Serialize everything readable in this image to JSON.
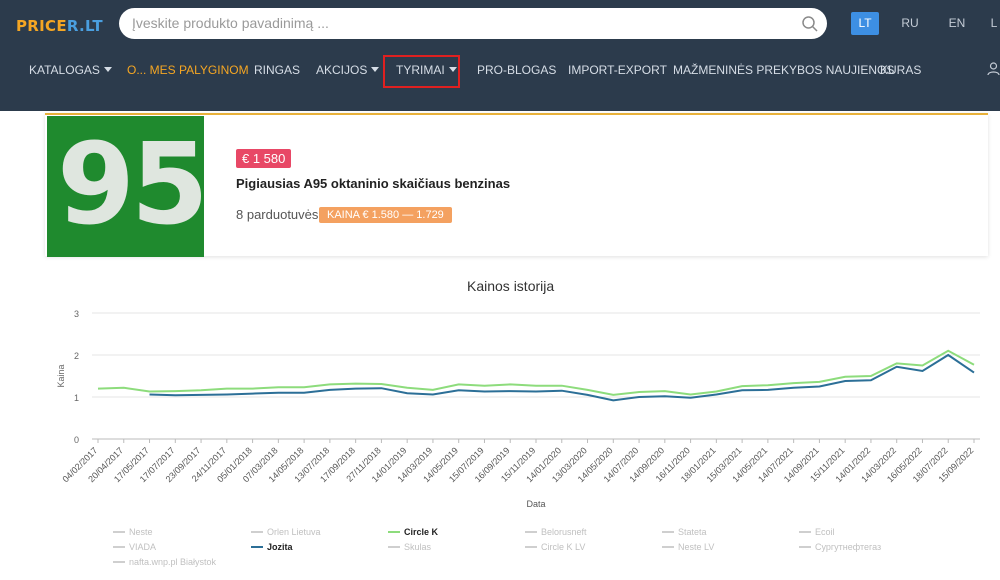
{
  "header": {
    "logo_main": "PRICE",
    "logo_suffix": "R.LT",
    "search_placeholder": "Įveskite produkto pavadinimą ...",
    "languages": [
      "LT",
      "RU",
      "EN",
      "L"
    ]
  },
  "nav": {
    "items": [
      {
        "label": "KATALOGAS",
        "caret": true
      },
      {
        "label": "O... MES PALYGINOM"
      },
      {
        "label": "RINGAS"
      },
      {
        "label": "AKCIJOS",
        "caret": true
      },
      {
        "label": "TYRIMAI",
        "caret": true
      },
      {
        "label": "PRO-BLOGAS"
      },
      {
        "label": "IMPORT-EXPORT"
      },
      {
        "label": "MAŽMENINĖS PREKYBOS NAUJIENOS"
      },
      {
        "label": "KURAS"
      }
    ],
    "highlight_color": "#e02020",
    "accent_color": "#f5a623"
  },
  "product": {
    "image_text": "95",
    "price": "€ 1 580",
    "title": "Pigiausias A95 oktaninio skaičiaus benzinas",
    "stores": "8 parduotuvės",
    "range": "KAINA € 1.580 — 1.729"
  },
  "chart_data": {
    "type": "line",
    "title": "Kainos istorija",
    "xlabel": "Data",
    "ylabel": "Kaina",
    "ylim": [
      0,
      3
    ],
    "yticks": [
      "0",
      "1",
      "2",
      "3"
    ],
    "grid": true,
    "legend_position": "bottom",
    "x": [
      "04/02/2017",
      "20/04/2017",
      "17/05/2017",
      "17/07/2017",
      "23/09/2017",
      "24/11/2017",
      "05/01/2018",
      "07/03/2018",
      "14/05/2018",
      "13/07/2018",
      "17/09/2018",
      "27/11/2018",
      "14/01/2019",
      "14/03/2019",
      "14/05/2019",
      "15/07/2019",
      "16/09/2019",
      "15/11/2019",
      "14/01/2020",
      "13/03/2020",
      "14/05/2020",
      "14/07/2020",
      "14/09/2020",
      "16/11/2020",
      "18/01/2021",
      "15/03/2021",
      "14/05/2021",
      "14/07/2021",
      "14/09/2021",
      "15/11/2021",
      "14/01/2022",
      "14/03/2022",
      "16/05/2022",
      "18/07/2022",
      "15/09/2022"
    ],
    "series": [
      {
        "name": "Circle K",
        "color": "#8ddc7c",
        "values": [
          1.2,
          1.22,
          1.13,
          1.14,
          1.16,
          1.2,
          1.2,
          1.23,
          1.23,
          1.3,
          1.32,
          1.31,
          1.22,
          1.17,
          1.3,
          1.27,
          1.3,
          1.27,
          1.27,
          1.17,
          1.05,
          1.12,
          1.14,
          1.06,
          1.13,
          1.26,
          1.28,
          1.33,
          1.36,
          1.48,
          1.5,
          1.8,
          1.75,
          2.1,
          1.77
        ]
      },
      {
        "name": "Jozita",
        "color": "#2c6f97",
        "values": [
          null,
          null,
          1.06,
          1.04,
          1.05,
          1.06,
          1.08,
          1.1,
          1.1,
          1.17,
          1.2,
          1.21,
          1.09,
          1.06,
          1.16,
          1.13,
          1.14,
          1.13,
          1.15,
          1.05,
          0.92,
          1.0,
          1.02,
          0.98,
          1.06,
          1.16,
          1.17,
          1.22,
          1.25,
          1.38,
          1.4,
          1.72,
          1.62,
          2.0,
          1.58
        ]
      }
    ],
    "legend": [
      {
        "name": "Neste",
        "active": false
      },
      {
        "name": "Orlen Lietuva",
        "active": false
      },
      {
        "name": "Circle K",
        "active": true,
        "color": "#8ddc7c"
      },
      {
        "name": "Belorusneft",
        "active": false
      },
      {
        "name": "Stateta",
        "active": false
      },
      {
        "name": "Ecoil",
        "active": false
      },
      {
        "name": "VIADA",
        "active": false
      },
      {
        "name": "Jozita",
        "active": true,
        "color": "#2c6f97"
      },
      {
        "name": "Skulas",
        "active": false
      },
      {
        "name": "Circle K LV",
        "active": false
      },
      {
        "name": "Neste LV",
        "active": false
      },
      {
        "name": "Сургутнефтегаз",
        "active": false
      },
      {
        "name": "nafta.wnp.pl Białystok",
        "active": false
      }
    ]
  }
}
